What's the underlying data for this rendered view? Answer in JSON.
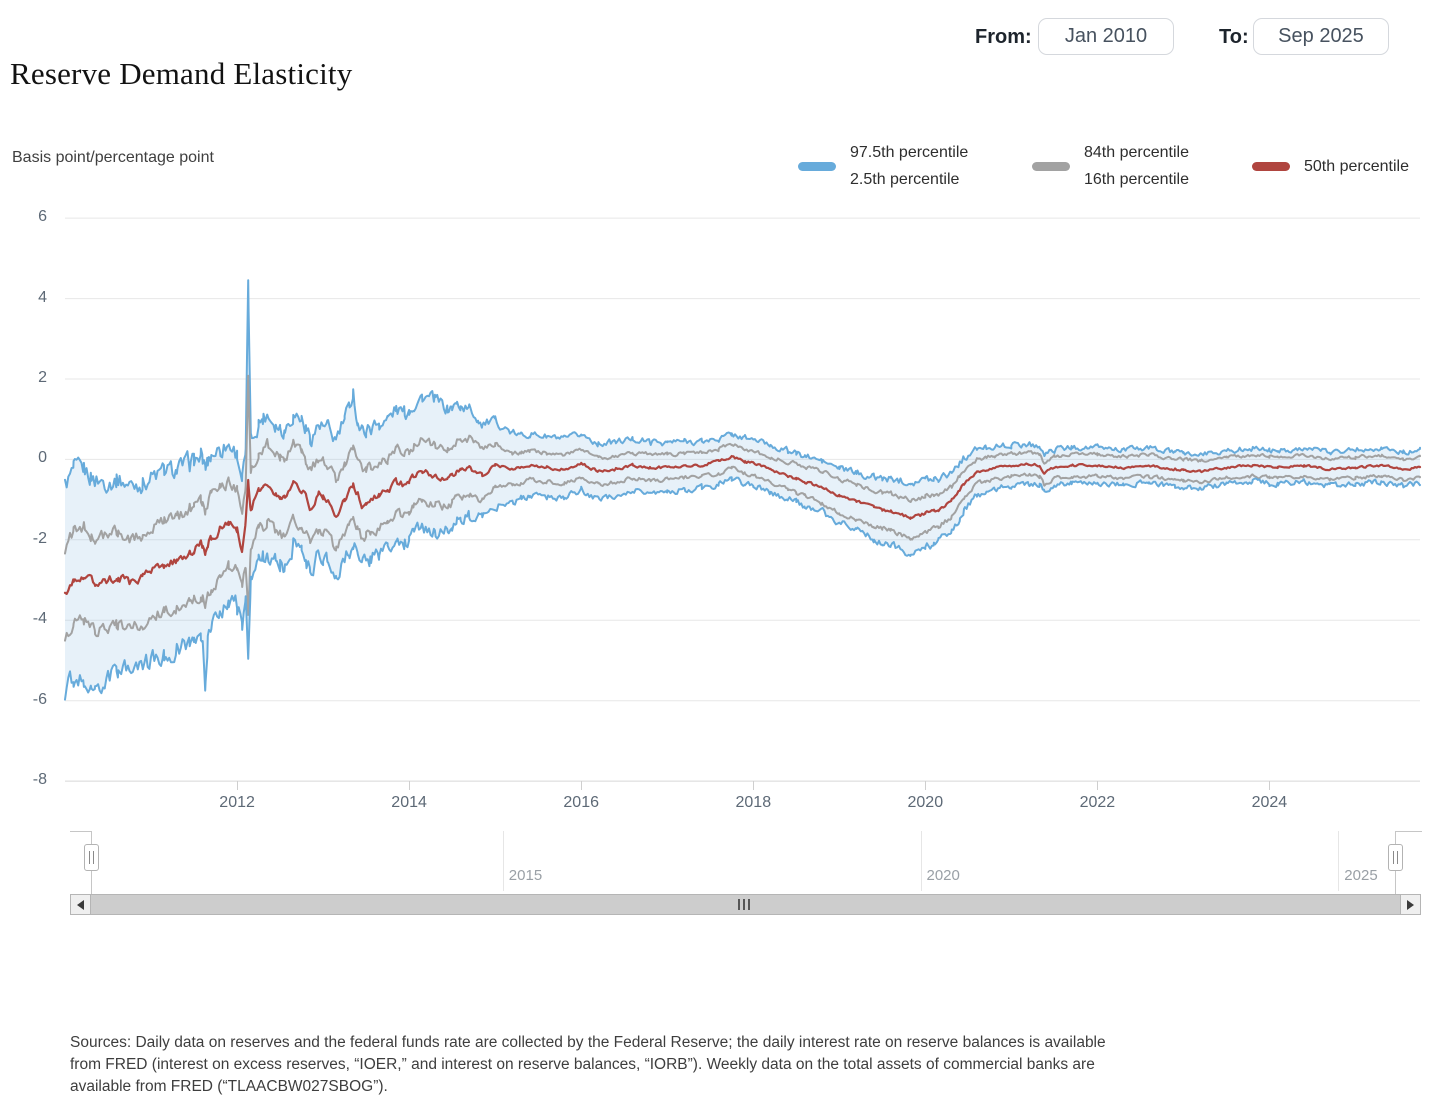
{
  "header": {
    "title": "Reserve Demand Elasticity",
    "from_label": "From:",
    "from_value": "Jan 2010",
    "to_label": "To:",
    "to_value": "Sep 2025"
  },
  "legend": {
    "items": [
      {
        "id": "blue-band",
        "color": "#67abdb",
        "lines": [
          "97.5th percentile",
          "2.5th percentile"
        ]
      },
      {
        "id": "gray-band",
        "color": "#a2a2a2",
        "lines": [
          "84th percentile",
          "16th percentile"
        ]
      },
      {
        "id": "median",
        "color": "#b0453f",
        "lines": [
          "50th percentile"
        ]
      }
    ]
  },
  "chart_data": {
    "type": "line",
    "title": "Reserve Demand Elasticity",
    "ylabel": "Basis point/percentage point",
    "xlabel": "",
    "x_range": [
      2010.0,
      2025.75
    ],
    "ylim": [
      -8,
      6
    ],
    "y_ticks": [
      6,
      4,
      2,
      0,
      -2,
      -4,
      -6,
      -8
    ],
    "x_ticks": [
      2012,
      2014,
      2016,
      2018,
      2020,
      2022,
      2024
    ],
    "grid": "horizontal",
    "legend_position": "top-right",
    "band_fill_color": "#69a8d8",
    "band_fill_opacity": 0.16,
    "gridline_color": "#e7e7e7",
    "baseline_color": "#d6d6d6",
    "p50_anchors": [
      [
        2010.0,
        -3.35
      ],
      [
        2010.1,
        -2.95
      ],
      [
        2010.22,
        -2.85
      ],
      [
        2010.35,
        -3.05
      ],
      [
        2010.5,
        -3.0
      ],
      [
        2010.62,
        -2.92
      ],
      [
        2010.75,
        -3.05
      ],
      [
        2010.9,
        -2.95
      ],
      [
        2011.0,
        -2.8
      ],
      [
        2011.15,
        -2.62
      ],
      [
        2011.3,
        -2.52
      ],
      [
        2011.45,
        -2.3
      ],
      [
        2011.58,
        -2.1
      ],
      [
        2011.63,
        -2.32
      ],
      [
        2011.7,
        -1.95
      ],
      [
        2011.8,
        -1.75
      ],
      [
        2011.9,
        -1.58
      ],
      [
        2012.0,
        -1.75
      ],
      [
        2012.06,
        -2.25
      ],
      [
        2012.1,
        -1.6
      ],
      [
        2012.13,
        -0.6
      ],
      [
        2012.16,
        -1.25
      ],
      [
        2012.25,
        -0.8
      ],
      [
        2012.35,
        -0.58
      ],
      [
        2012.45,
        -0.85
      ],
      [
        2012.55,
        -1.0
      ],
      [
        2012.65,
        -0.6
      ],
      [
        2012.75,
        -0.72
      ],
      [
        2012.85,
        -1.18
      ],
      [
        2012.95,
        -0.85
      ],
      [
        2013.05,
        -1.0
      ],
      [
        2013.15,
        -1.38
      ],
      [
        2013.25,
        -0.95
      ],
      [
        2013.35,
        -0.62
      ],
      [
        2013.45,
        -1.12
      ],
      [
        2013.55,
        -1.0
      ],
      [
        2013.65,
        -0.9
      ],
      [
        2013.75,
        -0.8
      ],
      [
        2013.85,
        -0.55
      ],
      [
        2013.95,
        -0.65
      ],
      [
        2014.05,
        -0.45
      ],
      [
        2014.15,
        -0.3
      ],
      [
        2014.3,
        -0.42
      ],
      [
        2014.45,
        -0.5
      ],
      [
        2014.55,
        -0.3
      ],
      [
        2014.7,
        -0.22
      ],
      [
        2014.85,
        -0.4
      ],
      [
        2015.0,
        -0.15
      ],
      [
        2015.2,
        -0.25
      ],
      [
        2015.4,
        -0.15
      ],
      [
        2015.6,
        -0.2
      ],
      [
        2015.8,
        -0.25
      ],
      [
        2016.0,
        -0.1
      ],
      [
        2016.2,
        -0.3
      ],
      [
        2016.4,
        -0.25
      ],
      [
        2016.6,
        -0.15
      ],
      [
        2016.8,
        -0.2
      ],
      [
        2017.0,
        -0.2
      ],
      [
        2017.2,
        -0.15
      ],
      [
        2017.4,
        -0.14
      ],
      [
        2017.6,
        -0.05
      ],
      [
        2017.75,
        0.08
      ],
      [
        2017.9,
        -0.05
      ],
      [
        2018.0,
        -0.1
      ],
      [
        2018.2,
        -0.25
      ],
      [
        2018.4,
        -0.4
      ],
      [
        2018.6,
        -0.55
      ],
      [
        2018.8,
        -0.7
      ],
      [
        2019.0,
        -0.9
      ],
      [
        2019.2,
        -1.05
      ],
      [
        2019.4,
        -1.2
      ],
      [
        2019.6,
        -1.3
      ],
      [
        2019.83,
        -1.45
      ],
      [
        2020.0,
        -1.35
      ],
      [
        2020.15,
        -1.25
      ],
      [
        2020.3,
        -1.05
      ],
      [
        2020.45,
        -0.6
      ],
      [
        2020.6,
        -0.3
      ],
      [
        2020.8,
        -0.2
      ],
      [
        2021.0,
        -0.15
      ],
      [
        2021.2,
        -0.1
      ],
      [
        2021.33,
        -0.15
      ],
      [
        2021.38,
        -0.35
      ],
      [
        2021.5,
        -0.2
      ],
      [
        2021.7,
        -0.15
      ],
      [
        2022.0,
        -0.15
      ],
      [
        2022.3,
        -0.2
      ],
      [
        2022.6,
        -0.15
      ],
      [
        2022.9,
        -0.25
      ],
      [
        2023.2,
        -0.3
      ],
      [
        2023.5,
        -0.2
      ],
      [
        2023.8,
        -0.15
      ],
      [
        2024.1,
        -0.2
      ],
      [
        2024.4,
        -0.15
      ],
      [
        2024.7,
        -0.25
      ],
      [
        2025.0,
        -0.2
      ],
      [
        2025.3,
        -0.15
      ],
      [
        2025.55,
        -0.25
      ],
      [
        2025.75,
        -0.2
      ]
    ],
    "series": [
      {
        "name": "97.5th percentile",
        "color": "#67abdb",
        "width": 2,
        "sign": 1,
        "noise_factor": 1.25,
        "offset_anchors": [
          [
            2010.0,
            2.7
          ],
          [
            2010.5,
            2.45
          ],
          [
            2011.0,
            2.35
          ],
          [
            2011.5,
            2.2
          ],
          [
            2012.0,
            1.9
          ],
          [
            2012.1,
            1.7
          ],
          [
            2012.13,
            4.95
          ],
          [
            2012.16,
            1.7
          ],
          [
            2012.5,
            1.75
          ],
          [
            2013.0,
            1.7
          ],
          [
            2013.3,
            2.0
          ],
          [
            2013.35,
            2.35
          ],
          [
            2013.4,
            1.8
          ],
          [
            2014.0,
            1.8
          ],
          [
            2014.3,
            1.9
          ],
          [
            2014.6,
            1.6
          ],
          [
            2015.0,
            1.1
          ],
          [
            2015.3,
            0.8
          ],
          [
            2016.0,
            0.72
          ],
          [
            2017.0,
            0.62
          ],
          [
            2017.75,
            0.55
          ],
          [
            2018.0,
            0.6
          ],
          [
            2018.5,
            0.62
          ],
          [
            2019.0,
            0.68
          ],
          [
            2019.5,
            0.78
          ],
          [
            2019.83,
            0.9
          ],
          [
            2020.3,
            0.75
          ],
          [
            2020.6,
            0.55
          ],
          [
            2021.0,
            0.5
          ],
          [
            2021.5,
            0.45
          ],
          [
            2022.0,
            0.45
          ],
          [
            2023.0,
            0.42
          ],
          [
            2024.0,
            0.42
          ],
          [
            2025.0,
            0.45
          ],
          [
            2025.75,
            0.42
          ]
        ]
      },
      {
        "name": "84th percentile",
        "color": "#a2a2a2",
        "width": 2,
        "sign": 1,
        "noise_factor": 0.8,
        "offset_anchors": [
          [
            2010.0,
            1.15
          ],
          [
            2011.5,
            1.05
          ],
          [
            2012.1,
            1.0
          ],
          [
            2012.13,
            2.55
          ],
          [
            2012.16,
            1.0
          ],
          [
            2013.0,
            0.9
          ],
          [
            2014.0,
            0.8
          ],
          [
            2014.8,
            0.7
          ],
          [
            2015.2,
            0.38
          ],
          [
            2016.0,
            0.33
          ],
          [
            2018.0,
            0.3
          ],
          [
            2019.0,
            0.42
          ],
          [
            2019.83,
            0.45
          ],
          [
            2020.6,
            0.3
          ],
          [
            2021.0,
            0.28
          ],
          [
            2025.75,
            0.25
          ]
        ]
      },
      {
        "name": "50th percentile",
        "color": "#b0453f",
        "width": 2.2,
        "sign": 0,
        "noise_factor": 0.55,
        "offset_anchors": [
          [
            2010.0,
            0
          ],
          [
            2025.75,
            0
          ]
        ]
      },
      {
        "name": "16th percentile",
        "color": "#a2a2a2",
        "width": 2,
        "sign": -1,
        "noise_factor": 0.8,
        "offset_anchors": [
          [
            2010.0,
            1.15
          ],
          [
            2010.5,
            1.2
          ],
          [
            2011.0,
            1.1
          ],
          [
            2011.63,
            1.3
          ],
          [
            2012.0,
            1.0
          ],
          [
            2012.1,
            0.95
          ],
          [
            2012.13,
            3.3
          ],
          [
            2012.16,
            0.95
          ],
          [
            2013.0,
            0.9
          ],
          [
            2014.0,
            0.75
          ],
          [
            2014.8,
            0.65
          ],
          [
            2015.2,
            0.38
          ],
          [
            2016.0,
            0.33
          ],
          [
            2017.0,
            0.3
          ],
          [
            2018.0,
            0.3
          ],
          [
            2019.0,
            0.42
          ],
          [
            2019.83,
            0.5
          ],
          [
            2020.6,
            0.3
          ],
          [
            2021.0,
            0.28
          ],
          [
            2025.75,
            0.25
          ]
        ]
      },
      {
        "name": "2.5th percentile",
        "color": "#67abdb",
        "width": 2,
        "sign": -1,
        "noise_factor": 1.3,
        "offset_anchors": [
          [
            2010.0,
            2.4
          ],
          [
            2010.3,
            2.6
          ],
          [
            2010.6,
            2.3
          ],
          [
            2011.0,
            2.2
          ],
          [
            2011.5,
            2.2
          ],
          [
            2011.6,
            2.3
          ],
          [
            2011.63,
            3.2
          ],
          [
            2011.66,
            2.3
          ],
          [
            2011.9,
            1.9
          ],
          [
            2012.0,
            1.9
          ],
          [
            2012.1,
            1.8
          ],
          [
            2012.13,
            4.1
          ],
          [
            2012.16,
            1.8
          ],
          [
            2012.3,
            1.7
          ],
          [
            2012.5,
            1.7
          ],
          [
            2012.8,
            1.5
          ],
          [
            2013.0,
            1.55
          ],
          [
            2013.5,
            1.5
          ],
          [
            2014.0,
            1.4
          ],
          [
            2014.5,
            1.3
          ],
          [
            2015.0,
            1.0
          ],
          [
            2015.3,
            0.75
          ],
          [
            2016.0,
            0.68
          ],
          [
            2017.0,
            0.6
          ],
          [
            2018.0,
            0.55
          ],
          [
            2018.5,
            0.6
          ],
          [
            2019.0,
            0.65
          ],
          [
            2019.5,
            0.8
          ],
          [
            2019.83,
            0.88
          ],
          [
            2020.1,
            0.8
          ],
          [
            2020.4,
            0.7
          ],
          [
            2020.7,
            0.55
          ],
          [
            2021.0,
            0.5
          ],
          [
            2021.5,
            0.45
          ],
          [
            2022.0,
            0.45
          ],
          [
            2023.0,
            0.42
          ],
          [
            2024.0,
            0.4
          ],
          [
            2025.0,
            0.42
          ],
          [
            2025.75,
            0.4
          ]
        ]
      }
    ],
    "noise_profile": [
      [
        2010.0,
        0.2
      ],
      [
        2012.0,
        0.18
      ],
      [
        2013.0,
        0.17
      ],
      [
        2014.5,
        0.13
      ],
      [
        2015.2,
        0.065
      ],
      [
        2018.0,
        0.06
      ],
      [
        2019.5,
        0.07
      ],
      [
        2020.3,
        0.08
      ],
      [
        2020.8,
        0.055
      ],
      [
        2025.75,
        0.05
      ]
    ]
  },
  "navigator": {
    "labels": [
      {
        "text": "2015",
        "year": 2015
      },
      {
        "text": "2020",
        "year": 2020
      },
      {
        "text": "2025",
        "year": 2025
      }
    ]
  },
  "source_note": "Sources: Daily data on reserves and the federal funds rate are collected by the Federal Reserve; the daily interest rate on reserve balances is available\nfrom FRED (interest on excess reserves, “IOER,” and interest on reserve balances, “IORB”). Weekly data on the total assets of commercial banks are\navailable from FRED (“TLAACBW027SBOG”)."
}
